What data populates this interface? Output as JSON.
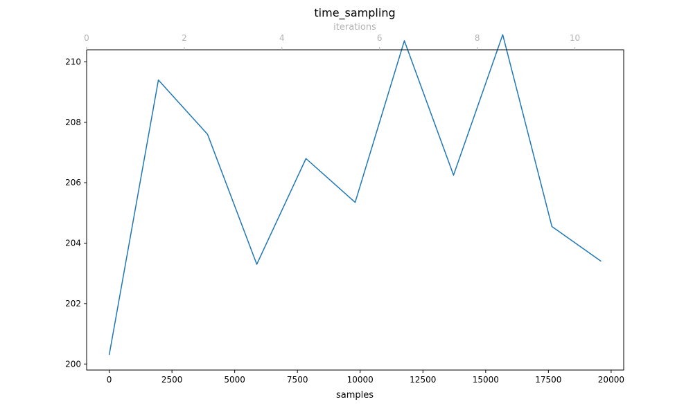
{
  "chart_data": {
    "type": "line",
    "title": "time_sampling",
    "xlabel": "samples",
    "ylabel": "",
    "top_xlabel": "iterations",
    "xlim": [
      -900,
      20500
    ],
    "ylim": [
      199.8,
      210.4
    ],
    "top_xlim": [
      0,
      11
    ],
    "x_ticks": [
      0,
      2500,
      5000,
      7500,
      10000,
      12500,
      15000,
      17500,
      20000
    ],
    "x_tick_labels": [
      "0",
      "2500",
      "5000",
      "7500",
      "10000",
      "12500",
      "15000",
      "17500",
      "20000"
    ],
    "y_ticks": [
      200,
      202,
      204,
      206,
      208,
      210
    ],
    "y_tick_labels": [
      "200",
      "202",
      "204",
      "206",
      "208",
      "210"
    ],
    "top_ticks": [
      0,
      2,
      4,
      6,
      8,
      10
    ],
    "top_tick_labels": [
      "0",
      "2",
      "4",
      "6",
      "8",
      "10"
    ],
    "grid": false,
    "series": [
      {
        "color": "#1f77b4",
        "x": [
          0,
          1960,
          3920,
          5880,
          7840,
          9800,
          11760,
          13720,
          15680,
          17640,
          19600
        ],
        "y": [
          200.3,
          209.4,
          207.6,
          203.3,
          206.8,
          205.35,
          210.7,
          206.25,
          210.9,
          204.55,
          203.4
        ]
      }
    ]
  }
}
